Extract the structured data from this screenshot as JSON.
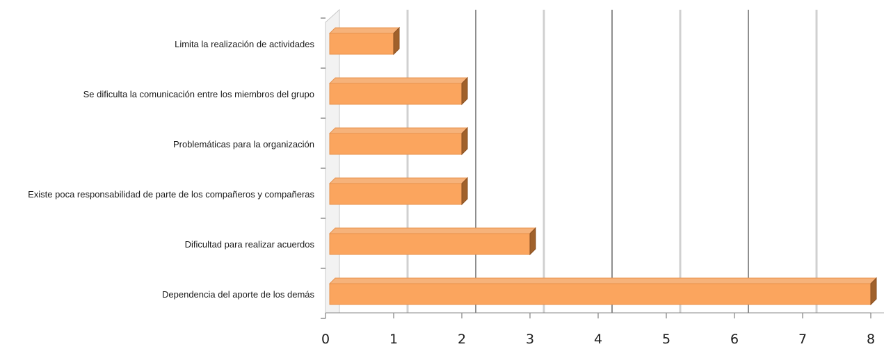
{
  "chart_data": {
    "type": "bar",
    "orientation": "horizontal",
    "style": "3d",
    "categories": [
      "Limita la realización de actividades",
      "Se dificulta la comunicación entre los miembros del grupo",
      "Problemáticas para la organización",
      "Existe poca responsabilidad de parte de los compañeros y compañeras",
      "Dificultad para realizar acuerdos",
      "Dependencia del aporte de los demás"
    ],
    "values": [
      1,
      2,
      2,
      2,
      3,
      8
    ],
    "xlim": [
      0,
      8
    ],
    "x_ticks": [
      "0",
      "1",
      "2",
      "3",
      "4",
      "5",
      "6",
      "7",
      "8"
    ],
    "title": "",
    "xlabel": "",
    "ylabel": "",
    "grid": true,
    "legend": "none",
    "colors": {
      "bar_face": "#FBA55E",
      "bar_top": "#F6B27A",
      "bar_side": "#A0612B",
      "grid_light": "#D0D0D0",
      "grid_dark": "#8E8E8E"
    }
  }
}
